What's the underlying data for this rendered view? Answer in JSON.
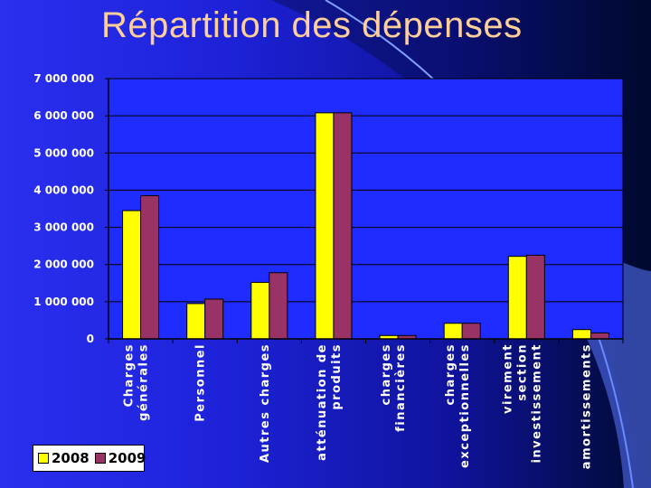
{
  "slide": {
    "title": "Répartition des dépenses"
  },
  "colors": {
    "accent_yellow": "#ffff00",
    "accent_purple": "#993366",
    "title_color": "#ffcf9a"
  },
  "chart_data": {
    "type": "bar",
    "categories": [
      [
        "Charges",
        "générales"
      ],
      [
        "Personnel"
      ],
      [
        "Autres charges"
      ],
      [
        "atténuation de",
        "produits"
      ],
      [
        "charges",
        "financières"
      ],
      [
        "charges",
        "exceptionnelles"
      ],
      [
        "virement",
        "section",
        "investissement"
      ],
      [
        "amortissements"
      ]
    ],
    "series": [
      {
        "name": "2008",
        "color": "#ffff00",
        "values": [
          3450000,
          950000,
          1520000,
          6080000,
          90000,
          420000,
          2220000,
          250000
        ]
      },
      {
        "name": "2009",
        "color": "#993366",
        "values": [
          3850000,
          1070000,
          1780000,
          6080000,
          90000,
          420000,
          2250000,
          160000
        ]
      }
    ],
    "y_ticks": [
      "0",
      "1 000 000",
      "2 000 000",
      "3 000 000",
      "4 000 000",
      "5 000 000",
      "6 000 000",
      "7 000 000"
    ],
    "ylim": [
      0,
      7000000
    ],
    "grid": true,
    "legend_position": "bottom-left"
  }
}
